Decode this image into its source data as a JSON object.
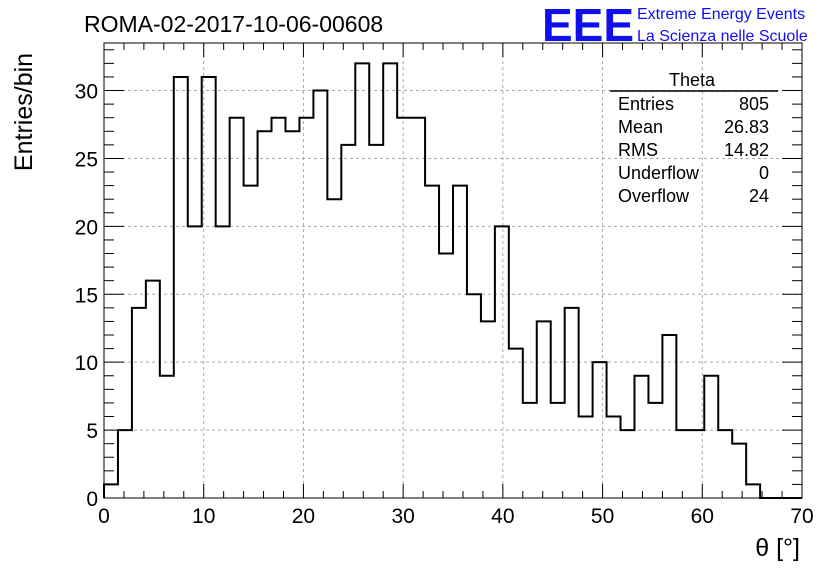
{
  "header": {
    "run_title": "ROMA-02-2017-10-06-00608",
    "logo_mark": "EEE",
    "logo_line1": "Extreme Energy Events",
    "logo_line2": "La Scienza nelle Scuole"
  },
  "stats_box": {
    "title": "Theta",
    "rows": [
      {
        "label": "Entries",
        "value": "805"
      },
      {
        "label": "Mean",
        "value": "26.83"
      },
      {
        "label": "RMS",
        "value": "14.82"
      },
      {
        "label": "Underflow",
        "value": "0"
      },
      {
        "label": "Overflow",
        "value": "24"
      }
    ]
  },
  "chart_data": {
    "type": "bar",
    "style": "step-histogram",
    "title": "ROMA-02-2017-10-06-00608",
    "xlabel": "θ [°]",
    "ylabel": "Entries/bin",
    "xlim": [
      0,
      70
    ],
    "ylim": [
      0,
      33.5
    ],
    "grid": true,
    "bin_width": 1.4,
    "bin_edges_start": 0,
    "values": [
      1,
      5,
      14,
      16,
      9,
      31,
      20,
      31,
      20,
      28,
      23,
      27,
      28,
      27,
      28,
      30,
      22,
      26,
      32,
      26,
      32,
      28,
      28,
      23,
      18,
      23,
      15,
      13,
      20,
      11,
      7,
      13,
      7,
      14,
      6,
      10,
      6,
      5,
      9,
      7,
      12,
      5,
      5,
      9,
      5,
      4,
      1,
      0,
      0,
      0
    ],
    "xticks": [
      0,
      10,
      20,
      30,
      40,
      50,
      60,
      70
    ],
    "yticks": [
      0,
      5,
      10,
      15,
      20,
      25,
      30
    ],
    "line_color": "#000000",
    "grid_color": "#aaaaaa"
  }
}
